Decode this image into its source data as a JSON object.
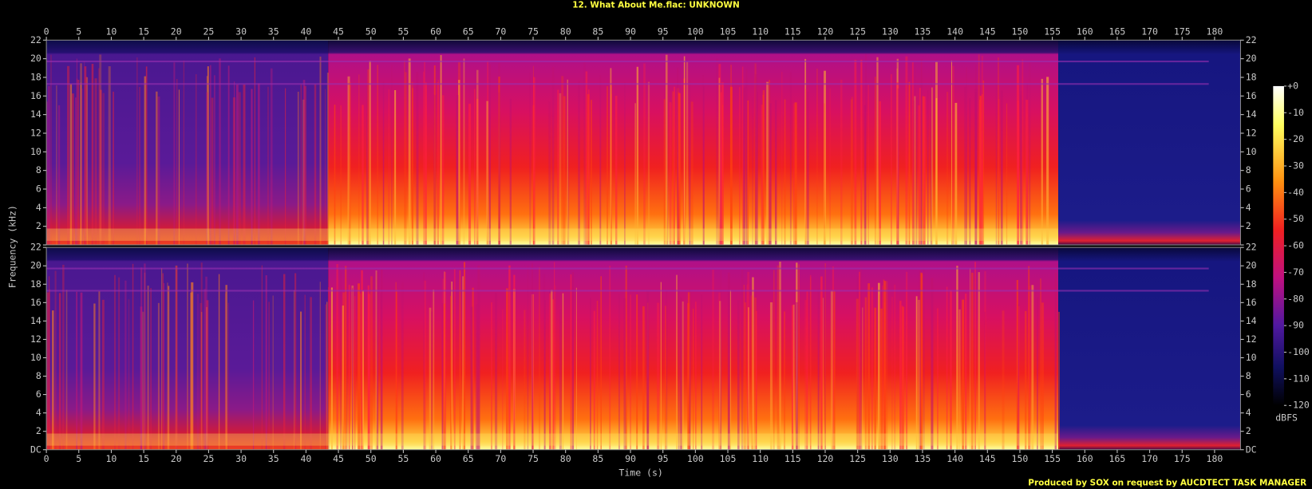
{
  "chart_data": {
    "type": "spectrogram",
    "title": "12. What About Me.flac: UNKNOWN",
    "xlabel": "Time (s)",
    "ylabel": "Frequency (kHz)",
    "xlim": [
      0,
      184
    ],
    "xticks": [
      0,
      5,
      10,
      15,
      20,
      25,
      30,
      35,
      40,
      45,
      50,
      55,
      60,
      65,
      70,
      75,
      80,
      85,
      90,
      95,
      100,
      105,
      110,
      115,
      120,
      125,
      130,
      135,
      140,
      145,
      150,
      155,
      160,
      165,
      170,
      175,
      180
    ],
    "ylim": [
      0,
      22
    ],
    "yticks": [
      {
        "value": 0,
        "label": "DC"
      },
      2,
      4,
      6,
      8,
      10,
      12,
      14,
      16,
      18,
      20,
      22
    ],
    "colorbar": {
      "label": "dBFS",
      "lim": [
        -120,
        0
      ],
      "ticks": [
        {
          "value": 0,
          "label": "+0"
        },
        -10,
        -20,
        -30,
        -40,
        -50,
        -60,
        -70,
        -80,
        -90,
        -100,
        -110,
        -120
      ]
    }
  },
  "footer": "Produced by SOX on request by AUCDTECT TASK MANAGER"
}
